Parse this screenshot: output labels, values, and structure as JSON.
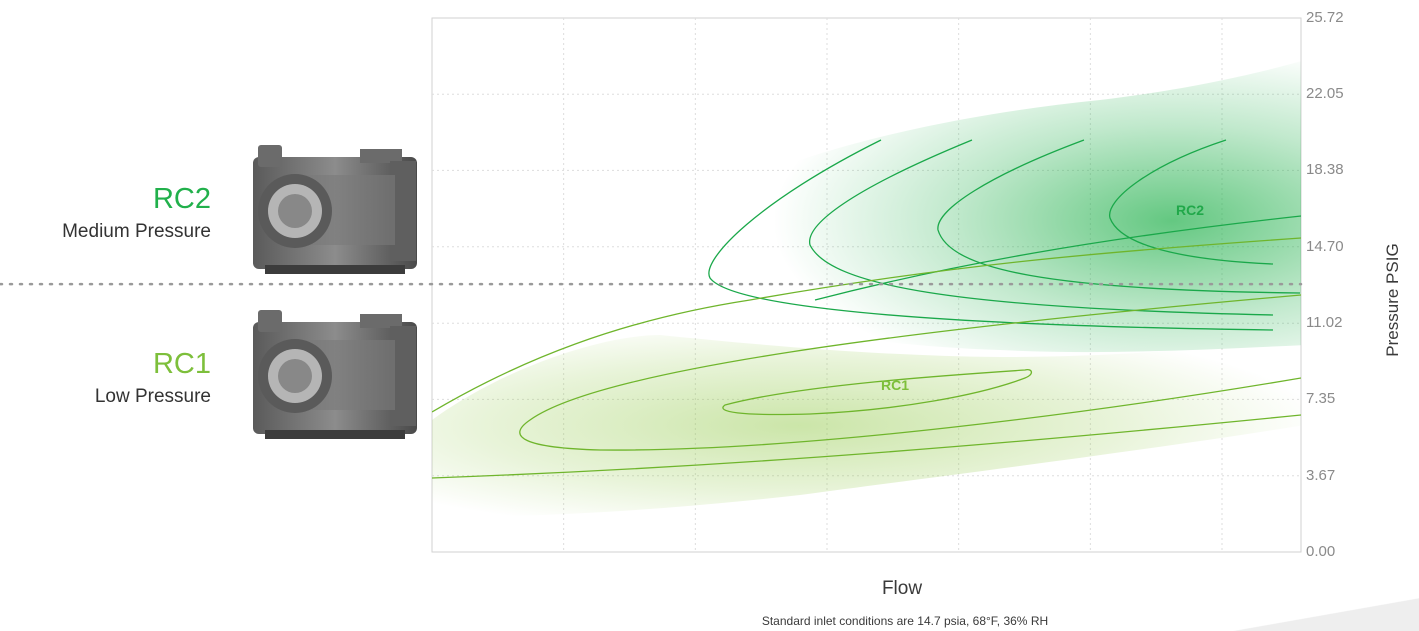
{
  "products": [
    {
      "name": "RC2",
      "description": "Medium Pressure",
      "color": "#21b04b",
      "image": "blower-package-illustration"
    },
    {
      "name": "RC1",
      "description": "Low Pressure",
      "color": "#7dbf3b",
      "image": "blower-package-illustration"
    }
  ],
  "chart_data": {
    "type": "area",
    "title": "",
    "xlabel": "Flow",
    "ylabel": "Pressure PSIG",
    "y_ticks": [
      "25.72",
      "22.05",
      "18.38",
      "14.70",
      "11.02",
      "7.35",
      "3.67",
      "0.00"
    ],
    "ylim": [
      0,
      25.72
    ],
    "x_ticks_labeled": false,
    "grid": "dotted",
    "divider_pressure": 12.9,
    "series": [
      {
        "name": "RC2",
        "color": "#21b04b",
        "label": "RC2"
      },
      {
        "name": "RC1",
        "color": "#7dbf3b",
        "label": "RC1"
      }
    ]
  },
  "footnote": "Standard inlet conditions are 14.7 psia, 68°F, 36% RH"
}
